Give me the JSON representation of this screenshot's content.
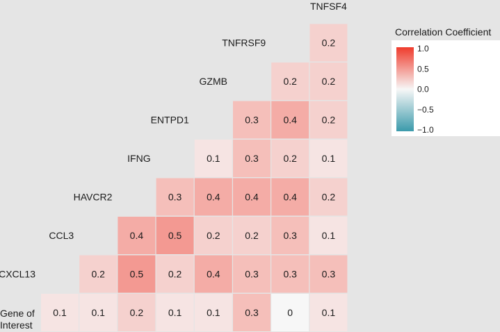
{
  "chart_data": {
    "type": "heatmap",
    "labels": [
      "Gene of Interest",
      "CXCL13",
      "CCL3",
      "HAVCR2",
      "IFNG",
      "ENTPD1",
      "GZMB",
      "TNFRSF9",
      "TNFSF4"
    ],
    "values": [
      [
        0.1,
        0.1,
        0.2,
        0.1,
        0.1,
        0.3,
        0,
        0.1
      ],
      [
        0.2,
        0.5,
        0.2,
        0.4,
        0.3,
        0.3,
        0.3
      ],
      [
        0.4,
        0.5,
        0.2,
        0.2,
        0.3,
        0.1
      ],
      [
        0.3,
        0.4,
        0.4,
        0.4,
        0.2
      ],
      [
        0.1,
        0.3,
        0.2,
        0.1
      ],
      [
        0.3,
        0.4,
        0.2
      ],
      [
        0.2,
        0.2
      ],
      [
        0.2
      ]
    ],
    "legend": {
      "title": "Correlation Coefficient",
      "ticks": [
        "1.0",
        "0.5",
        "0.0",
        "−0.5",
        "−1.0"
      ],
      "range": [
        -1,
        1
      ],
      "colors": {
        "high": "#ef3b2c",
        "mid": "#f7f7f7",
        "low": "#3b9aab"
      }
    }
  }
}
